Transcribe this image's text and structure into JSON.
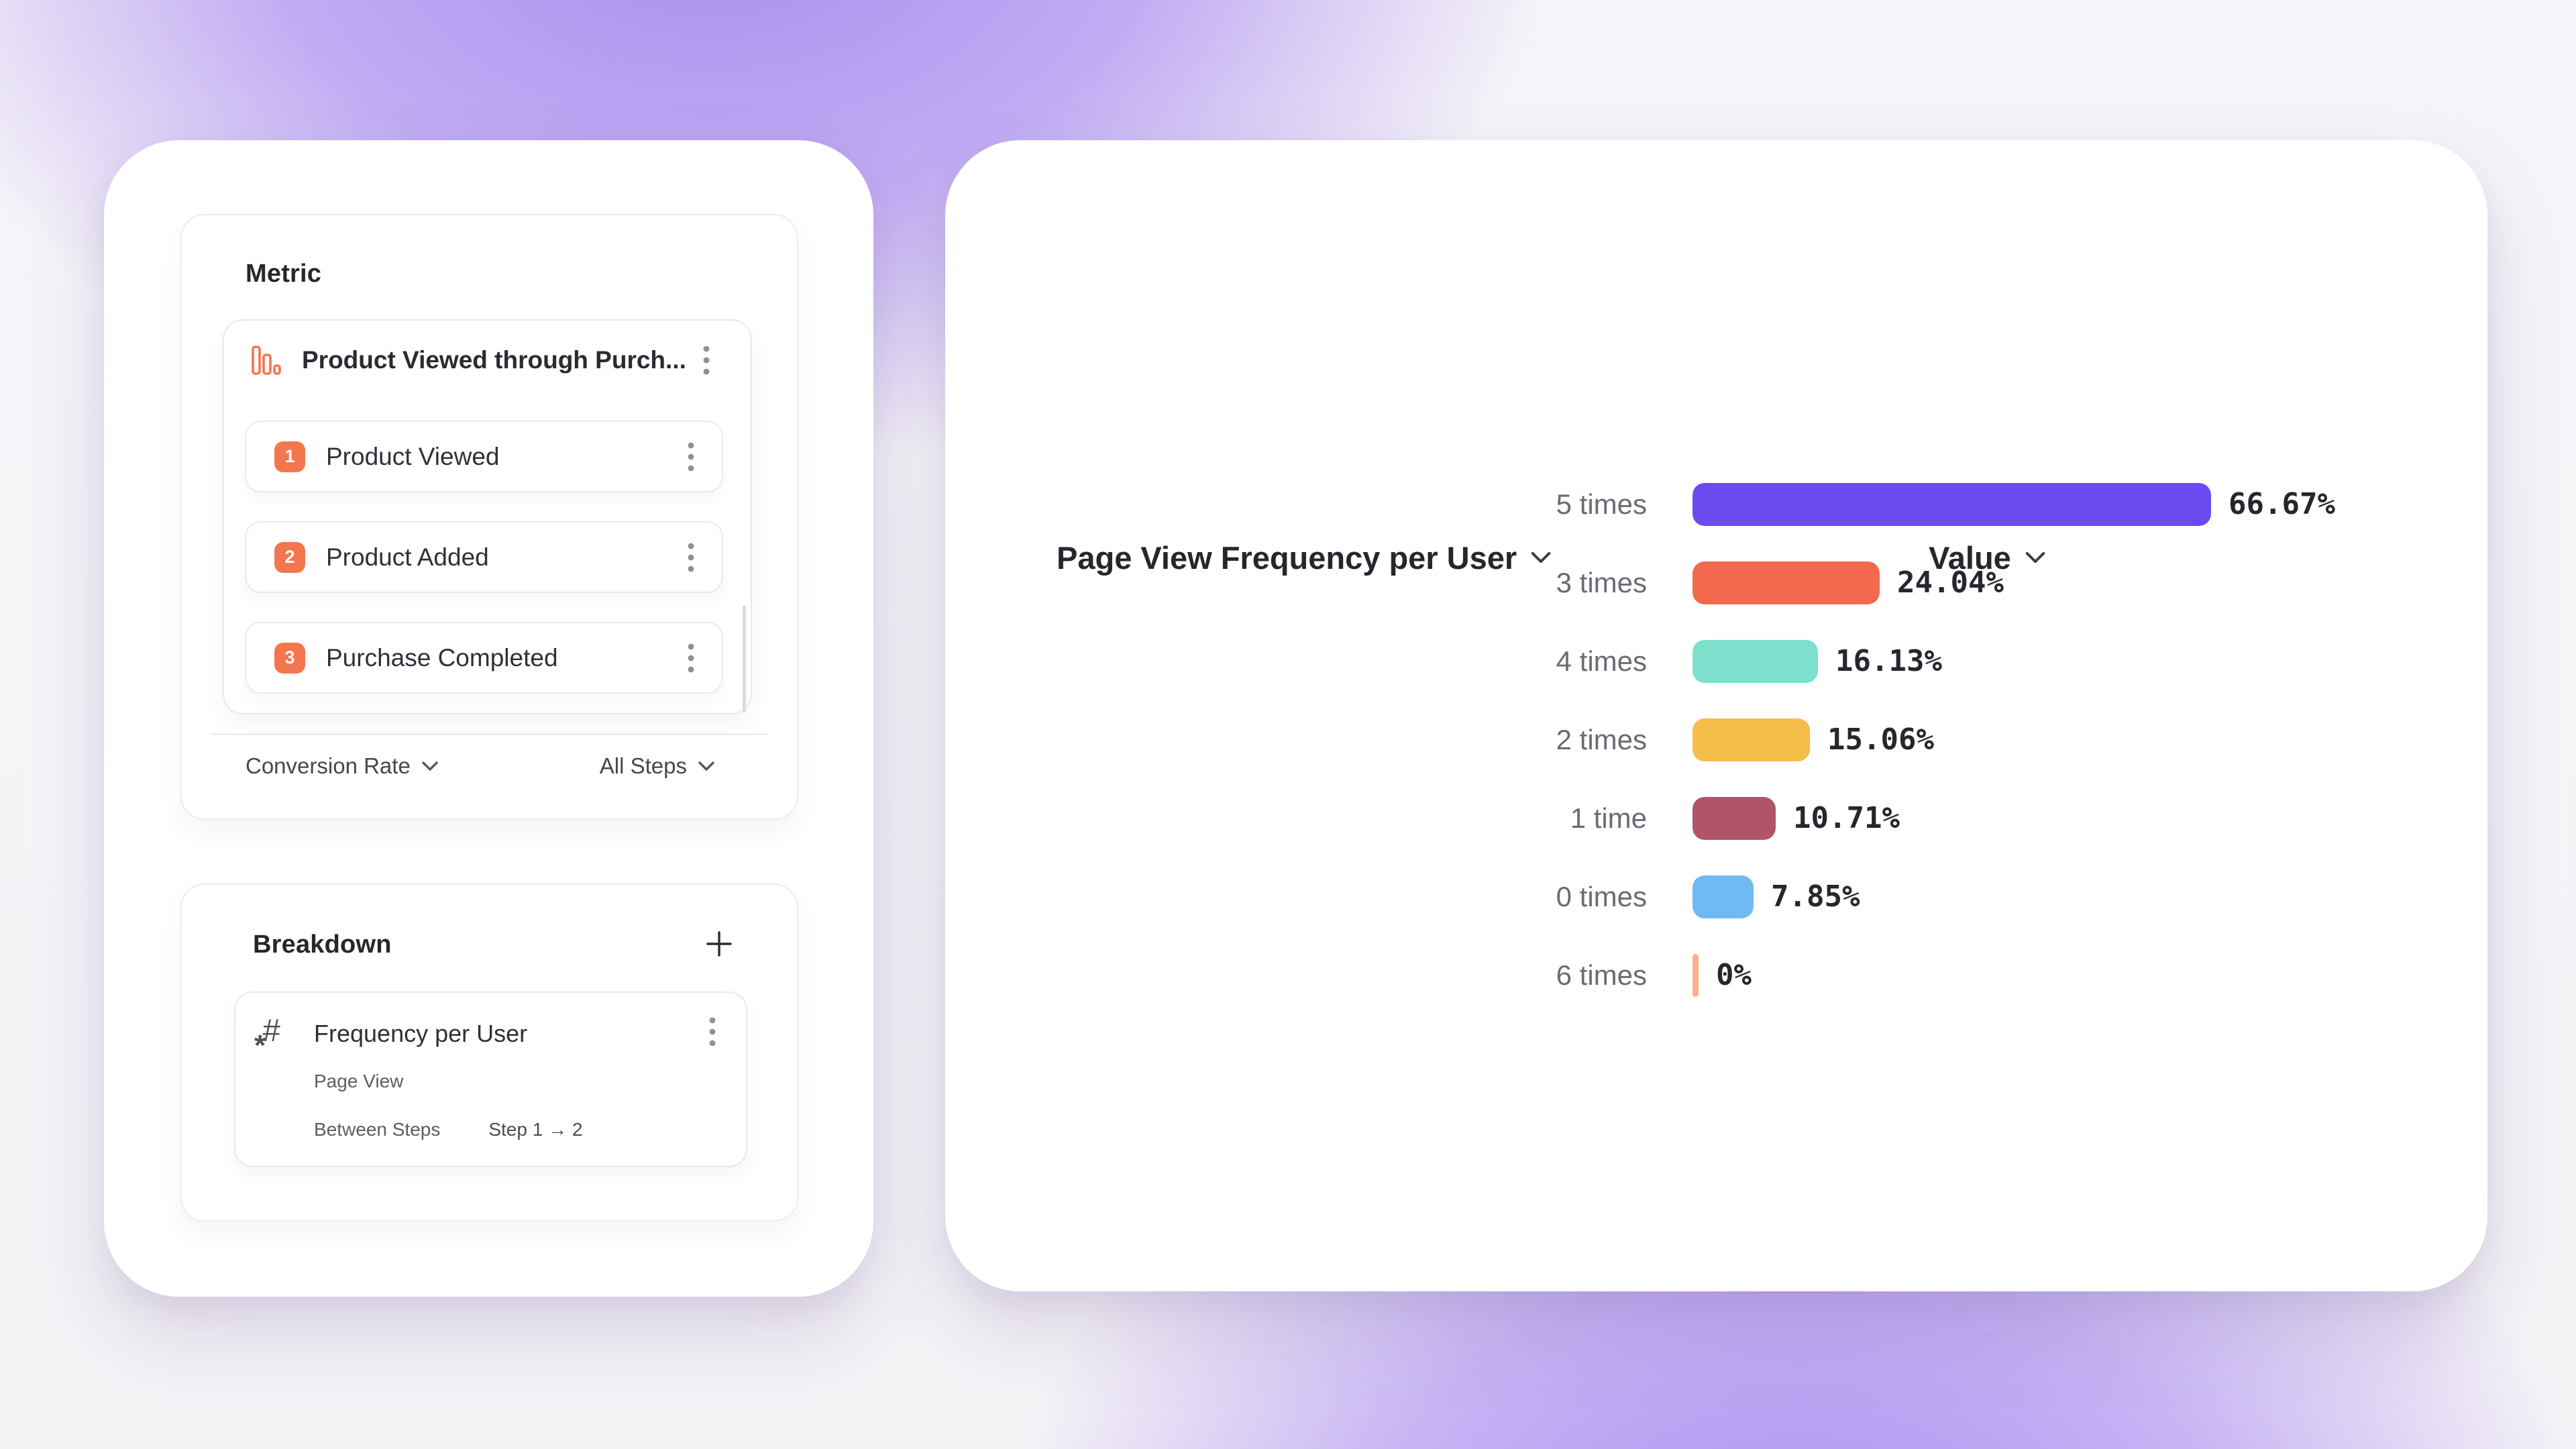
{
  "metric_panel": {
    "title": "Metric",
    "funnel_title": "Product Viewed through Purch...",
    "accent_color": "#F4764F",
    "steps": [
      {
        "num": "1",
        "label": "Product Viewed"
      },
      {
        "num": "2",
        "label": "Product Added"
      },
      {
        "num": "3",
        "label": "Purchase Completed"
      }
    ],
    "measure_dropdown": "Conversion Rate",
    "steps_dropdown": "All Steps"
  },
  "breakdown_panel": {
    "title": "Breakdown",
    "add_button": "+",
    "item": {
      "title": "Frequency per User",
      "event": "Page View",
      "scope_label": "Between Steps",
      "scope_value": "Step 1 → 2"
    }
  },
  "chart": {
    "series_dropdown": "Page View Frequency per User",
    "value_dropdown": "Value"
  },
  "chart_data": {
    "type": "bar",
    "orientation": "horizontal",
    "title": "Page View Frequency per User",
    "value_axis": "Value",
    "unit": "%",
    "xlim": [
      0,
      100
    ],
    "grid": "off",
    "legend": "none",
    "sort": "value_desc",
    "categories": [
      "5 times",
      "3 times",
      "4 times",
      "2 times",
      "1 time",
      "0 times",
      "6 times"
    ],
    "values": [
      66.67,
      24.04,
      16.13,
      15.06,
      10.71,
      7.85,
      0
    ],
    "value_labels": [
      "66.67%",
      "24.04%",
      "16.13%",
      "15.06%",
      "10.71%",
      "7.85%",
      "0%"
    ],
    "bar_colors": [
      "#6A4BF0",
      "#F4694D",
      "#7CE0CC",
      "#F5BD4A",
      "#B05468",
      "#70B9F2",
      "#FFAC8A"
    ]
  }
}
